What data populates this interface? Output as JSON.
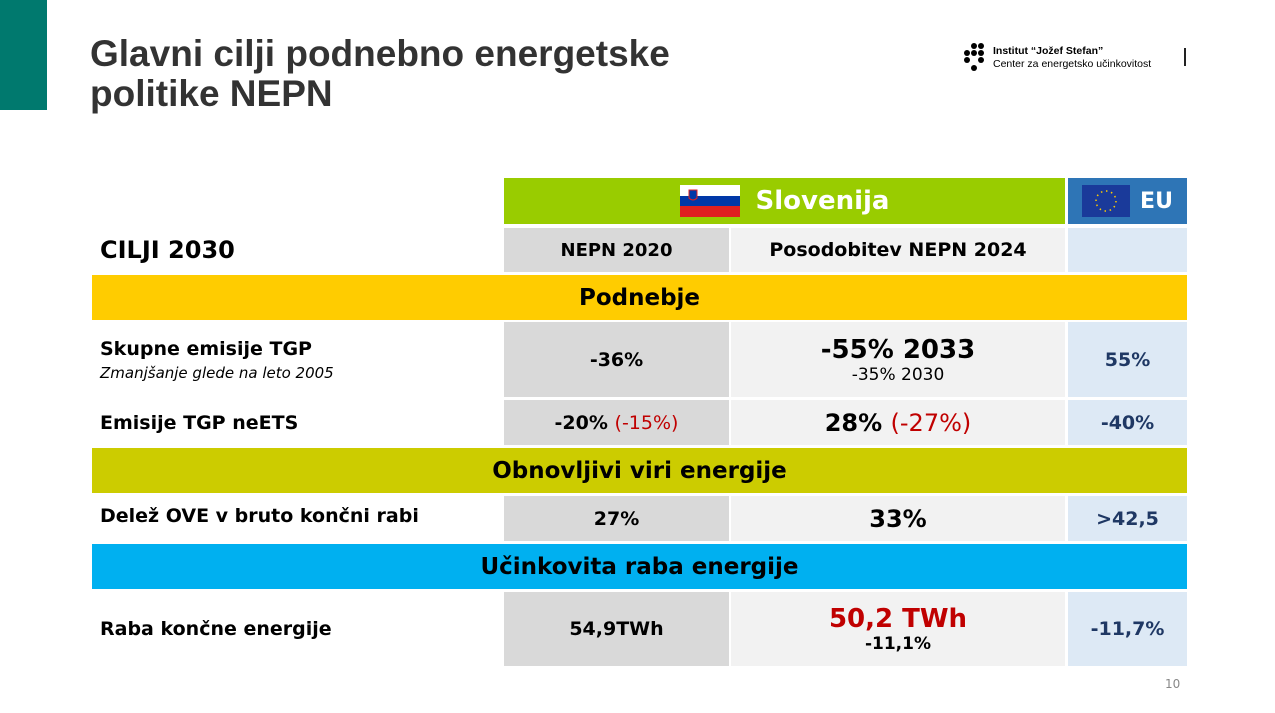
{
  "title": [
    "Glavni cilji podnebno energetske",
    "politike NEPN"
  ],
  "logo": {
    "line1": "Institut “Jožef Stefan”",
    "line2": "Center za energetsko učinkovitost"
  },
  "colors": {
    "teal": "#00796e",
    "slovenija": "#99cc00",
    "eu": "#2e75b6",
    "podnebje": "#ffcc00",
    "obnovljivi": "#cccc00",
    "ucinkovita": "#00b0f0",
    "red": "#c00000"
  },
  "header": {
    "slovenija": "Slovenija",
    "eu": "EU",
    "cilji": "CILJI 2030",
    "col1": "NEPN 2020",
    "col2": "Posodobitev NEPN 2024"
  },
  "sections": {
    "podnebje": "Podnebje",
    "obnovljivi": "Obnovljivi viri energije",
    "ucinkovita": "Učinkovita raba energije"
  },
  "rows": [
    {
      "label": "Skupne emisije TGP",
      "sublabel": "Zmanjšanje glede na leto 2005",
      "nepn2020": "-36%",
      "nepn2024": "-55% 2033",
      "nepn2024_sub": "-35% 2030",
      "eu": "55%"
    },
    {
      "label": "Emisije TGP neETS",
      "nepn2020": "-20%",
      "nepn2020_red": "(-15%)",
      "nepn2024": "28%",
      "nepn2024_red": "(-27%)",
      "eu": "-40%"
    },
    {
      "label": "Delež OVE v bruto končni rabi",
      "nepn2020": "27%",
      "nepn2024": "33%",
      "eu": ">42,5"
    },
    {
      "label": "Raba končne energije",
      "nepn2020": "54,9TWh",
      "nepn2024": "50,2 TWh",
      "nepn2024_sub": "-11,1%",
      "eu": "-11,7%"
    }
  ],
  "page_number": "10"
}
